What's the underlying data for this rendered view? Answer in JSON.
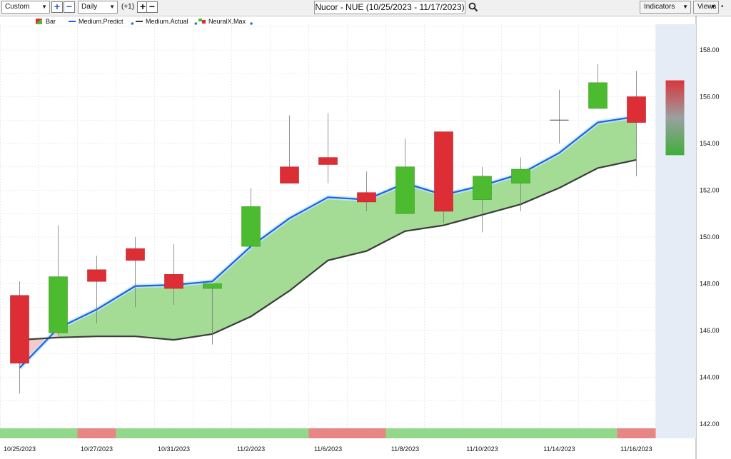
{
  "toolbar": {
    "range_select": "Custom",
    "interval_select": "Daily",
    "offset_label": "(+1)",
    "title": "Nucor - NUE (10/25/2023 - 11/17/2023)",
    "indicators_label": "Indicators",
    "views_label": "Views",
    "colors": {
      "accent": "#1e5fd6"
    },
    "icons": [
      "plus-icon",
      "minus-icon",
      "search-icon",
      "chevron-down-icon",
      "pin-icon"
    ]
  },
  "legend": [
    {
      "label": "Bar",
      "icon": "bar-icon"
    },
    {
      "label": "Medium.Predict",
      "color": "#1f5fe0"
    },
    {
      "label": "Medium.Actual",
      "color": "#3c3c3c"
    },
    {
      "label": "NeuralX.Max",
      "icon": "neuralx-icon"
    }
  ],
  "chart_data": {
    "type": "candlestick",
    "ylim": [
      142,
      159
    ],
    "yticks": [
      "142.00",
      "144.00",
      "146.00",
      "148.00",
      "150.00",
      "152.00",
      "154.00",
      "156.00",
      "158.00"
    ],
    "xtick_labels": [
      "10/25/2023",
      "10/27/2023",
      "10/31/2023",
      "11/2/2023",
      "11/6/2023",
      "11/8/2023",
      "11/10/2023",
      "11/14/2023",
      "11/16/2023"
    ],
    "xtick_index": [
      0,
      2,
      4,
      6,
      8,
      10,
      12,
      14,
      16
    ],
    "candles": [
      {
        "o": 147.5,
        "h": 148.1,
        "l": 143.3,
        "c": 144.6
      },
      {
        "o": 145.9,
        "h": 150.5,
        "l": 145.8,
        "c": 148.3
      },
      {
        "o": 148.6,
        "h": 149.2,
        "l": 146.3,
        "c": 148.1
      },
      {
        "o": 149.5,
        "h": 150.0,
        "l": 147.0,
        "c": 149.0
      },
      {
        "o": 148.4,
        "h": 149.7,
        "l": 147.1,
        "c": 147.8
      },
      {
        "o": 147.8,
        "h": 148.0,
        "l": 145.4,
        "c": 148.0
      },
      {
        "o": 149.6,
        "h": 152.1,
        "l": 149.5,
        "c": 151.3
      },
      {
        "o": 153.0,
        "h": 155.2,
        "l": 152.3,
        "c": 152.3
      },
      {
        "o": 153.4,
        "h": 155.3,
        "l": 152.3,
        "c": 153.1
      },
      {
        "o": 151.9,
        "h": 152.8,
        "l": 151.1,
        "c": 151.5
      },
      {
        "o": 151.0,
        "h": 154.2,
        "l": 151.0,
        "c": 153.0
      },
      {
        "o": 154.5,
        "h": 154.5,
        "l": 150.6,
        "c": 151.1
      },
      {
        "o": 151.6,
        "h": 153.0,
        "l": 150.2,
        "c": 152.6
      },
      {
        "o": 152.3,
        "h": 153.4,
        "l": 151.1,
        "c": 152.9
      },
      {
        "o": 155.0,
        "h": 156.3,
        "l": 154.0,
        "c": 155.0
      },
      {
        "o": 155.5,
        "h": 157.4,
        "l": 155.5,
        "c": 156.6
      },
      {
        "o": 156.0,
        "h": 157.1,
        "l": 152.6,
        "c": 154.9
      }
    ],
    "series": [
      {
        "name": "Medium.Predict",
        "values": [
          144.4,
          146.1,
          146.9,
          147.9,
          147.95,
          148.1,
          149.6,
          150.8,
          151.7,
          151.6,
          152.3,
          151.8,
          152.2,
          152.7,
          153.6,
          154.9,
          155.15
        ]
      },
      {
        "name": "Medium.Actual",
        "values": [
          145.6,
          145.7,
          145.75,
          145.75,
          145.6,
          145.85,
          146.6,
          147.7,
          149.0,
          149.4,
          150.25,
          150.5,
          150.95,
          151.4,
          152.1,
          152.95,
          153.3
        ]
      }
    ],
    "forecast_bar": {
      "top": 156.7,
      "bottom": 153.5
    },
    "signal_strip": [
      "green",
      "green",
      "red",
      "green",
      "green",
      "green",
      "green",
      "green",
      "red",
      "red",
      "green",
      "green",
      "green",
      "green",
      "green",
      "green",
      "red"
    ],
    "colors": {
      "up": "#4cbb2f",
      "down": "#dd2d35",
      "band": "#9fd98f",
      "predict": "#1f5fe0",
      "actual": "#3c3c3c",
      "strip_green": "#93d88a",
      "strip_red": "#e88585",
      "forecast_zone": "#e6ecf5"
    }
  }
}
